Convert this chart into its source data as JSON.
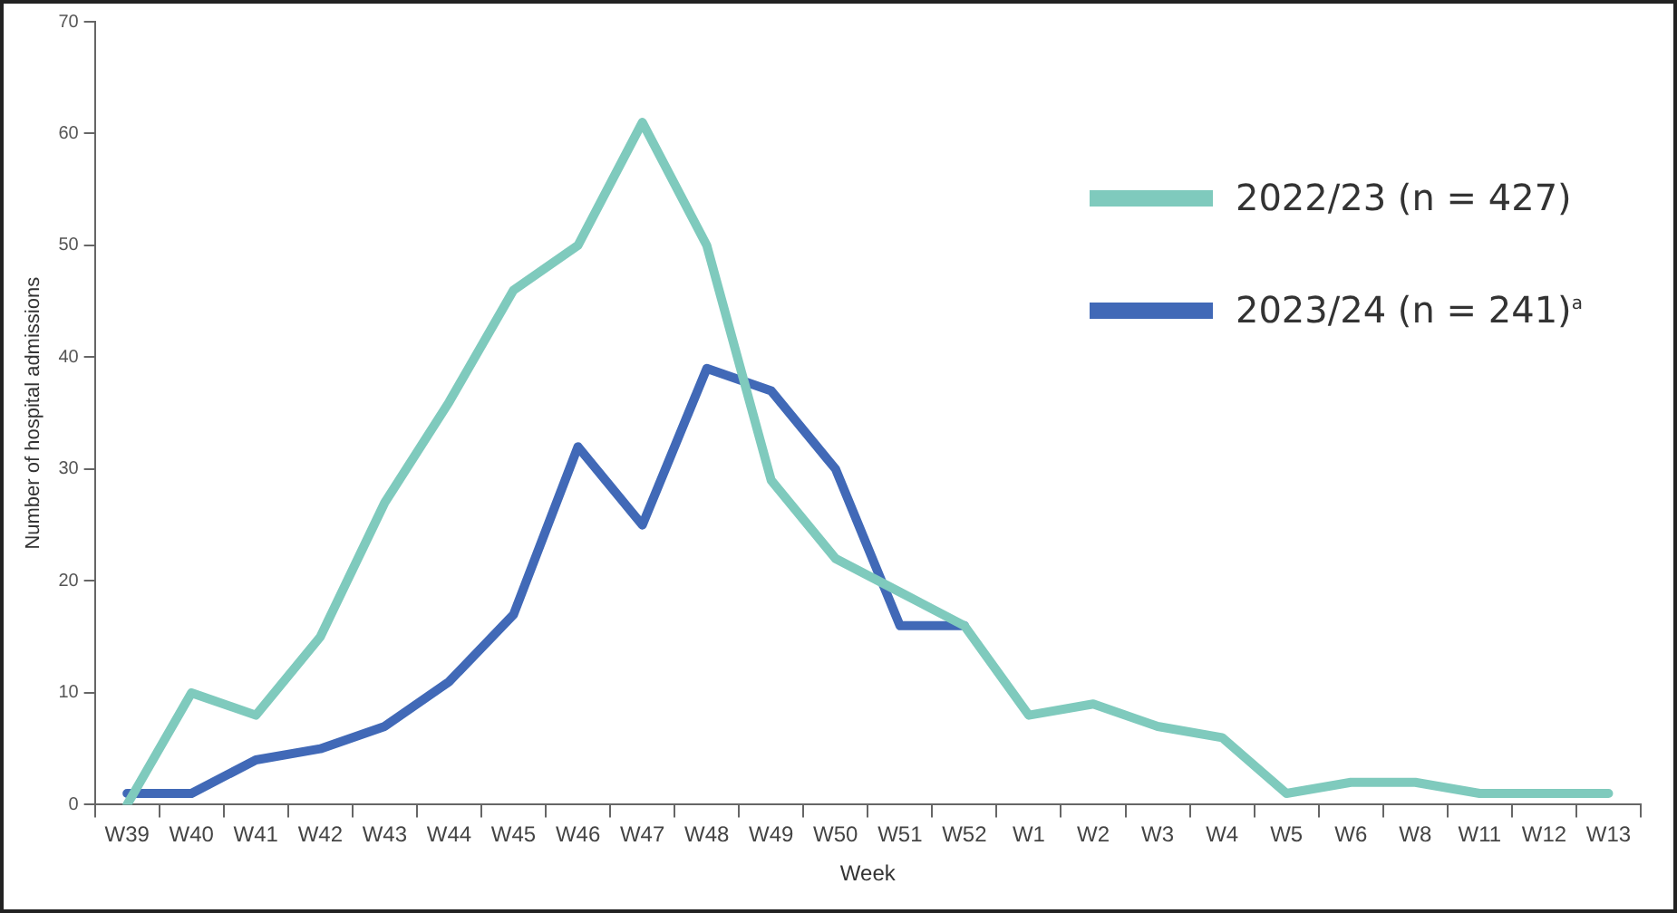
{
  "chart_data": {
    "type": "line",
    "xlabel": "Week",
    "ylabel": "Number of hospital admissions",
    "categories": [
      "W39",
      "W40",
      "W41",
      "W42",
      "W43",
      "W44",
      "W45",
      "W46",
      "W47",
      "W48",
      "W49",
      "W50",
      "W51",
      "W52",
      "W1",
      "W2",
      "W3",
      "W4",
      "W5",
      "W6",
      "W8",
      "W11",
      "W12",
      "W13"
    ],
    "series": [
      {
        "name": "2022/23 (n = 427)",
        "color": "#7fcabd",
        "values": [
          0,
          10,
          8,
          15,
          27,
          36,
          46,
          50,
          61,
          50,
          29,
          22,
          19,
          16,
          8,
          9,
          7,
          6,
          1,
          2,
          2,
          1,
          1,
          1
        ]
      },
      {
        "name": "2023/24 (n = 241)$^{a}$",
        "color": "#4169b7",
        "values": [
          1,
          1,
          4,
          5,
          7,
          11,
          17,
          32,
          25,
          39,
          37,
          30,
          16,
          16,
          null,
          null,
          null,
          null,
          null,
          null,
          null,
          null,
          null,
          null
        ]
      }
    ],
    "ylim": [
      0,
      70
    ],
    "yticks": [
      0,
      10,
      20,
      30,
      40,
      50,
      60,
      70
    ],
    "grid": false,
    "legend": "top right",
    "marker": "none",
    "line_style": "solid"
  }
}
